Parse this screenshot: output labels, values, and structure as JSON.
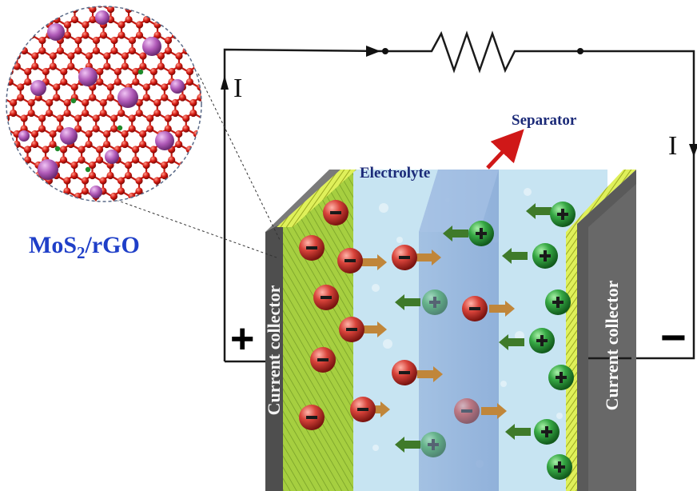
{
  "labels": {
    "material": "MoS",
    "material_sub": "2",
    "material_suffix": "/rGO",
    "separator": "Separator",
    "electrolyte": "Electrolyte",
    "current_left": "I",
    "current_right": "I",
    "collector_left": "Current collector",
    "collector_right": "Current collector",
    "positive_terminal": "+",
    "negative_terminal": "−"
  },
  "colors": {
    "wire": "#1a1a1a",
    "electrolyte": "#cfe9f5",
    "separator": "#8fb3dc",
    "electrode_left": "#9cc93a",
    "electrode_right": "#d9e84c",
    "collector": "#5e5e5e",
    "anion": "#c8302c",
    "cation": "#2e9a3a",
    "arrow_orange": "#c0863a",
    "arrow_green": "#3f7a2a",
    "carbon_atom": "#d51a12",
    "mo_atom": "#b05ab8",
    "title_blue": "#1f3fc8",
    "label_navy": "#1b2a78",
    "separator_pointer": "#d01818"
  },
  "icons": {
    "anion": "minus-sign-ion",
    "cation": "plus-sign-ion",
    "resistor": "zigzag-resistor"
  }
}
